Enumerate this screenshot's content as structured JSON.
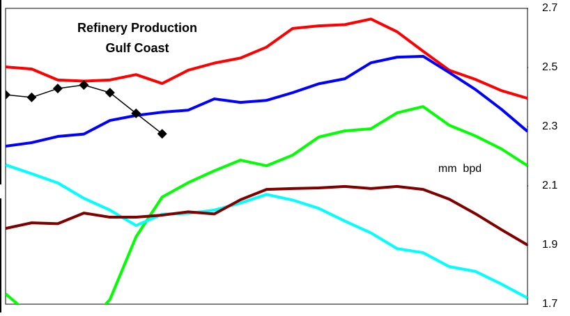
{
  "chart_data": {
    "type": "line",
    "title": "Refinery Production",
    "subtitle": "Gulf Coast",
    "annotation": "mm  bpd",
    "categories": [
      null,
      null,
      null,
      null,
      null,
      null,
      null,
      null,
      null,
      null,
      null,
      null,
      null,
      null,
      null,
      null,
      null,
      null,
      null,
      null,
      null
    ],
    "ylim": [
      1.7,
      2.7
    ],
    "yticks": [
      {
        "value": 1.7,
        "label": "1.7"
      },
      {
        "value": 1.9,
        "label": "1.9"
      },
      2.1,
      2.3,
      2.5,
      2.7
    ],
    "grid": false,
    "series": [
      {
        "color": "#ff0000",
        "width": 4,
        "values": [
          2.502,
          2.495,
          2.458,
          2.454,
          2.458,
          2.476,
          2.446,
          2.491,
          2.515,
          2.532,
          2.569,
          2.632,
          2.641,
          2.645,
          2.664,
          2.621,
          2.555,
          2.491,
          2.46,
          2.422,
          2.396
        ]
      },
      {
        "color": "#0000ff",
        "width": 4,
        "values": [
          2.234,
          2.246,
          2.267,
          2.275,
          2.321,
          2.338,
          2.349,
          2.356,
          2.394,
          2.382,
          2.389,
          2.415,
          2.445,
          2.462,
          2.516,
          2.535,
          2.538,
          2.483,
          2.426,
          2.359,
          2.284
        ]
      },
      {
        "color": "#00ff00",
        "width": 4,
        "values": [
          1.735,
          1.66,
          1.66,
          1.62,
          1.716,
          1.928,
          2.062,
          2.111,
          2.151,
          2.187,
          2.168,
          2.204,
          2.265,
          2.286,
          2.293,
          2.347,
          2.368,
          2.305,
          2.269,
          2.225,
          2.168
        ]
      },
      {
        "color": "#00ffff",
        "width": 4,
        "values": [
          2.171,
          2.141,
          2.11,
          2.058,
          2.018,
          1.966,
          2.004,
          2.007,
          2.018,
          2.042,
          2.071,
          2.052,
          2.024,
          1.981,
          1.941,
          1.888,
          1.874,
          1.827,
          1.811,
          1.768,
          1.721
        ]
      },
      {
        "color": "#800000",
        "width": 4,
        "values": [
          1.956,
          1.975,
          1.972,
          2.008,
          1.994,
          1.994,
          2.001,
          2.012,
          2.005,
          2.053,
          2.088,
          2.091,
          2.093,
          2.098,
          2.091,
          2.098,
          2.088,
          2.055,
          2.006,
          1.952,
          1.9
        ]
      },
      {
        "color": "#000000",
        "width": 1.5,
        "marker": "diamond",
        "values": [
          2.408,
          2.399,
          2.429,
          2.441,
          2.415,
          2.345,
          2.276,
          null,
          null,
          null,
          null,
          null,
          null,
          null,
          null,
          null,
          null,
          null,
          null,
          null,
          null
        ]
      }
    ]
  }
}
